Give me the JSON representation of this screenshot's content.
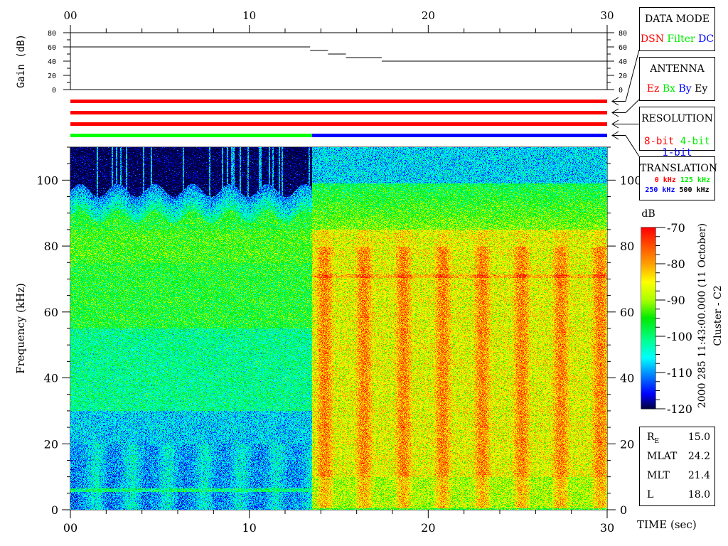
{
  "chart_data": {
    "type": "heatmap",
    "title": "",
    "xlabel": "TIME (sec)",
    "ylabel": "Frequency (kHz)",
    "xlim": [
      0,
      30
    ],
    "ylim": [
      0,
      110
    ],
    "x_ticks": [
      "00",
      "10",
      "20",
      "30"
    ],
    "y_ticks": [
      "0",
      "20",
      "40",
      "60",
      "80",
      "100"
    ],
    "colorbar": {
      "label": "dB",
      "range": [
        -120,
        -70
      ],
      "ticks": [
        "-70",
        "-80",
        "-90",
        "-100",
        "-110",
        "-120"
      ],
      "colormap": "rainbow"
    },
    "mode_change_time": 13.5,
    "gain_panel": {
      "ylabel": "Gain (dB)",
      "ylim": [
        0,
        80
      ],
      "y_ticks": [
        "0",
        "20",
        "40",
        "60",
        "80"
      ],
      "steps": [
        {
          "start": 0,
          "end": 13.4,
          "gain": 60
        },
        {
          "start": 13.4,
          "end": 14.4,
          "gain": 55
        },
        {
          "start": 14.4,
          "end": 15.4,
          "gain": 50
        },
        {
          "start": 15.4,
          "end": 17.4,
          "gain": 45
        },
        {
          "start": 17.4,
          "end": 30,
          "gain": 40
        }
      ]
    },
    "status_bars": [
      {
        "segments": [
          {
            "start": 0,
            "end": 30,
            "color": "#ff0000"
          }
        ]
      },
      {
        "segments": [
          {
            "start": 0,
            "end": 30,
            "color": "#ff0000"
          }
        ]
      },
      {
        "segments": [
          {
            "start": 0,
            "end": 30,
            "color": "#ff0000"
          }
        ]
      },
      {
        "segments": [
          {
            "start": 0,
            "end": 13.5,
            "color": "#00ff00"
          },
          {
            "start": 13.5,
            "end": 30,
            "color": "#0000ff"
          }
        ]
      }
    ]
  },
  "legends": {
    "data_mode": {
      "title": "DATA MODE",
      "items": [
        {
          "label": "DSN",
          "color": "#ff0000"
        },
        {
          "label": "Filter",
          "color": "#00ee00"
        },
        {
          "label": "DC",
          "color": "#0000ff"
        }
      ]
    },
    "antenna": {
      "title": "ANTENNA",
      "items": [
        {
          "label": "Ez",
          "color": "#ff0000"
        },
        {
          "label": "Bx",
          "color": "#00ee00"
        },
        {
          "label": "By",
          "color": "#0000ff"
        },
        {
          "label": "Ey",
          "color": "#000000"
        }
      ]
    },
    "resolution": {
      "title": "RESOLUTION",
      "items": [
        {
          "label": "8-bit",
          "color": "#ff0000"
        },
        {
          "label": "4-bit",
          "color": "#00ee00"
        },
        {
          "label": "1-bit",
          "color": "#0000ff"
        }
      ]
    },
    "translation": {
      "title": "TRANSLATION",
      "items": [
        {
          "label": "0 kHz",
          "color": "#ff0000"
        },
        {
          "label": "125 kHz",
          "color": "#00ee00"
        },
        {
          "label": "250 kHz",
          "color": "#0000ff"
        },
        {
          "label": "500 kHz",
          "color": "#000000"
        }
      ]
    }
  },
  "timestamp": "2000 285 11:43:00.000 (11 October)",
  "spacecraft": "Cluster - C2",
  "orbit_info": [
    {
      "label": "R",
      "sub": "E",
      "value": "15.0"
    },
    {
      "label": "MLAT",
      "sub": "",
      "value": "24.2"
    },
    {
      "label": "MLT",
      "sub": "",
      "value": "21.4"
    },
    {
      "label": "L",
      "sub": "",
      "value": "18.0"
    }
  ]
}
